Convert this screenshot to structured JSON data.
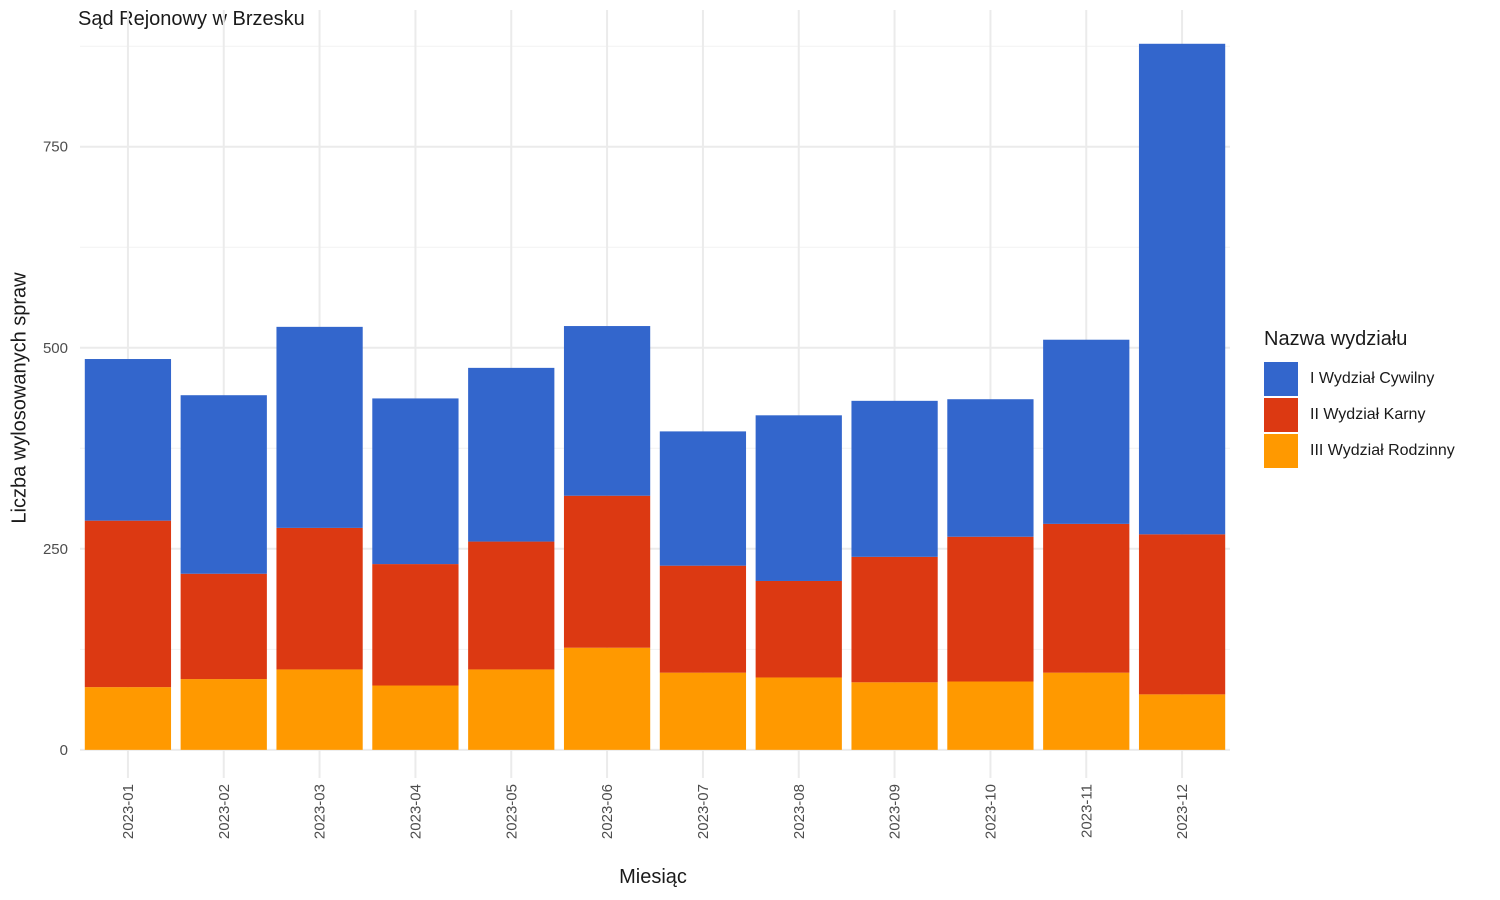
{
  "chart_data": {
    "type": "bar",
    "stacked": true,
    "title": "Sąd Rejonowy w Brzesku",
    "xlabel": "Miesiąc",
    "ylabel": "Liczba wylosowanych spraw",
    "ylim": [
      -35,
      920
    ],
    "yticks": [
      "0",
      "250",
      "500",
      "750"
    ],
    "grid": true,
    "legend_title": "Nazwa wydziału",
    "legend_position": "right",
    "categories": [
      "2023-01",
      "2023-02",
      "2023-03",
      "2023-04",
      "2023-05",
      "2023-06",
      "2023-07",
      "2023-08",
      "2023-09",
      "2023-10",
      "2023-11",
      "2023-12"
    ],
    "series": [
      {
        "name": "III Wydział Rodzinny",
        "color": "#FF9900",
        "values": [
          78,
          88,
          100,
          80,
          100,
          127,
          96,
          90,
          84,
          85,
          96,
          69
        ]
      },
      {
        "name": "II Wydział Karny",
        "color": "#DC3912",
        "values": [
          207,
          131,
          176,
          151,
          159,
          189,
          133,
          120,
          156,
          180,
          185,
          199
        ]
      },
      {
        "name": "I Wydział Cywilny",
        "color": "#3366CC",
        "values": [
          201,
          222,
          250,
          206,
          216,
          211,
          167,
          206,
          194,
          171,
          229,
          610
        ]
      }
    ]
  }
}
